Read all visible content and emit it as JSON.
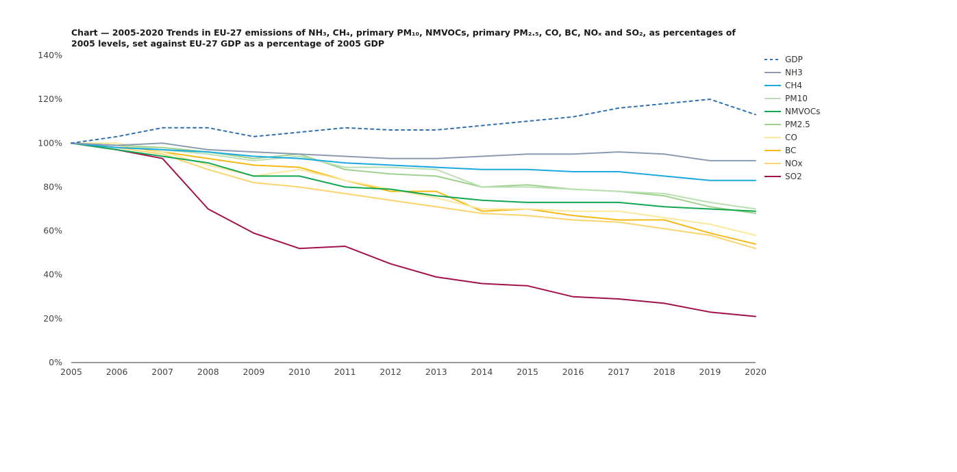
{
  "chart_data": {
    "type": "line",
    "title": "Chart — 2005-2020 Trends in EU-27 emissions of NH₃, CH₄, primary PM₁₀, NMVOCs, primary PM₂.₅, CO, BC, NOₓ and SO₂, as percentages of 2005 levels, set against EU-27 GDP as a percentage of 2005 GDP",
    "xlabel": "",
    "ylabel": "",
    "ylim": [
      0,
      140
    ],
    "grid": false,
    "legend_position": "right",
    "x": [
      "2005",
      "2006",
      "2007",
      "2008",
      "2009",
      "2010",
      "2011",
      "2012",
      "2013",
      "2014",
      "2015",
      "2016",
      "2017",
      "2018",
      "2019",
      "2020"
    ],
    "y_ticks": [
      {
        "value": 0,
        "label": "0%"
      },
      {
        "value": 20,
        "label": "20%"
      },
      {
        "value": 40,
        "label": "40%"
      },
      {
        "value": 60,
        "label": "60%"
      },
      {
        "value": 80,
        "label": "80%"
      },
      {
        "value": 100,
        "label": "100%"
      },
      {
        "value": 120,
        "label": "120%"
      },
      {
        "value": 140,
        "label": "140%"
      }
    ],
    "series": [
      {
        "name": "GDP",
        "color": "#2f6fb0",
        "dashed": true,
        "values": [
          100,
          103,
          107,
          107,
          103,
          105,
          107,
          106,
          106,
          108,
          110,
          112,
          116,
          118,
          120,
          113
        ]
      },
      {
        "name": "NH3",
        "color": "#8a9bb0",
        "dashed": false,
        "values": [
          100,
          99,
          100,
          97,
          96,
          95,
          94,
          93,
          93,
          94,
          95,
          95,
          96,
          95,
          92,
          92
        ]
      },
      {
        "name": "CH4",
        "color": "#1aa9e0",
        "dashed": false,
        "values": [
          100,
          98,
          97,
          96,
          94,
          93,
          91,
          90,
          89,
          88,
          88,
          87,
          87,
          85,
          83,
          83
        ]
      },
      {
        "name": "PM10",
        "color": "#b9dfb0",
        "dashed": false,
        "values": [
          100,
          99,
          97,
          95,
          92,
          94,
          89,
          89,
          88,
          80,
          80,
          79,
          78,
          77,
          73,
          70
        ]
      },
      {
        "name": "NMVOCs",
        "color": "#13a651",
        "dashed": false,
        "values": [
          100,
          97,
          94,
          91,
          85,
          85,
          80,
          79,
          76,
          74,
          73,
          73,
          73,
          71,
          70,
          69
        ]
      },
      {
        "name": "PM2.5",
        "color": "#9fd08e",
        "dashed": false,
        "values": [
          100,
          99,
          98,
          96,
          93,
          95,
          88,
          86,
          85,
          80,
          81,
          79,
          78,
          76,
          71,
          68
        ]
      },
      {
        "name": "CO",
        "color": "#fde79a",
        "dashed": false,
        "values": [
          100,
          100,
          96,
          90,
          85,
          88,
          83,
          79,
          75,
          70,
          70,
          69,
          69,
          66,
          63,
          58
        ]
      },
      {
        "name": "BC",
        "color": "#f5b915",
        "dashed": false,
        "values": [
          100,
          99,
          96,
          93,
          90,
          89,
          83,
          78,
          78,
          69,
          70,
          67,
          65,
          65,
          59,
          54
        ]
      },
      {
        "name": "NOx",
        "color": "#fad46c",
        "dashed": false,
        "values": [
          100,
          98,
          95,
          88,
          82,
          80,
          77,
          74,
          71,
          68,
          67,
          65,
          64,
          61,
          58,
          52
        ]
      },
      {
        "name": "SO2",
        "color": "#a2104a",
        "dashed": false,
        "values": [
          100,
          97,
          93,
          70,
          59,
          52,
          53,
          45,
          39,
          36,
          35,
          30,
          29,
          27,
          23,
          21
        ]
      }
    ]
  }
}
